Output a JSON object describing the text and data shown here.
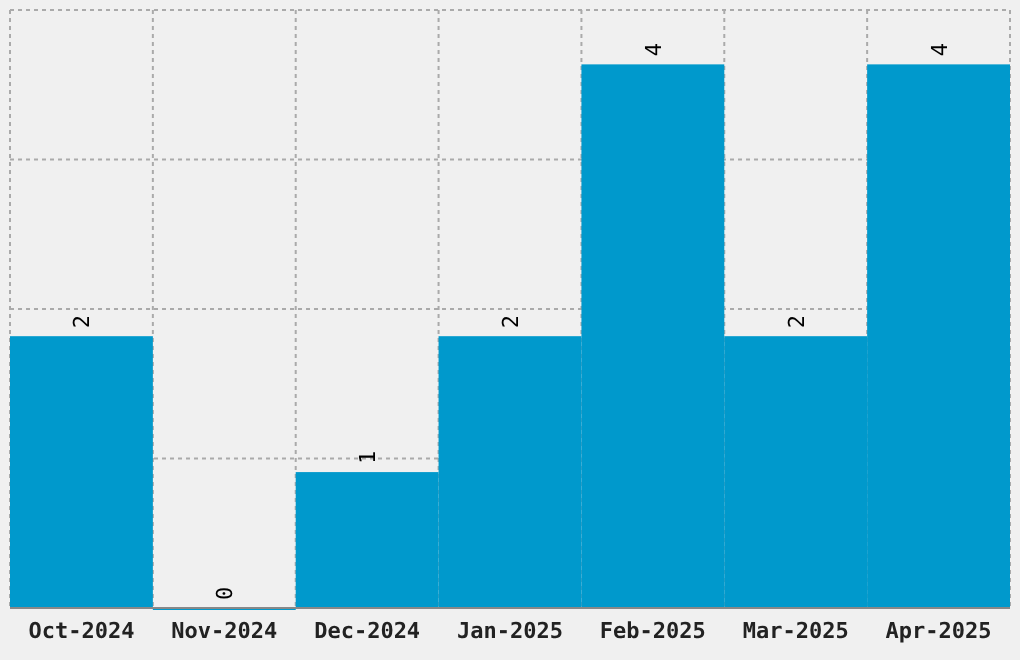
{
  "chart_data": {
    "type": "bar",
    "categories": [
      "Oct-2024",
      "Nov-2024",
      "Dec-2024",
      "Jan-2025",
      "Feb-2025",
      "Mar-2025",
      "Apr-2025"
    ],
    "values": [
      2,
      0,
      1,
      2,
      4,
      2,
      4
    ],
    "color": "#0099cc",
    "ylim": [
      0,
      4.4
    ],
    "yticks": [
      {
        "value": 0,
        "label": null
      },
      {
        "value": 1.1,
        "label": null
      },
      {
        "value": 2.2,
        "label": null
      },
      {
        "value": 3.3,
        "label": null
      },
      {
        "value": 4.4,
        "label": null
      }
    ],
    "grid": true,
    "data_labels": true,
    "tick_labels": "x"
  }
}
